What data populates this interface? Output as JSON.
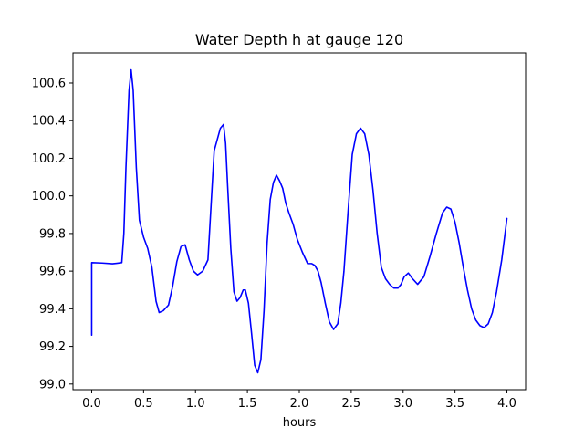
{
  "chart_data": {
    "type": "line",
    "title": "Water Depth h at gauge 120",
    "xlabel": "hours",
    "ylabel": "",
    "xlim": [
      -0.18,
      4.18
    ],
    "ylim": [
      98.97,
      100.76
    ],
    "xticks": [
      0.0,
      0.5,
      1.0,
      1.5,
      2.0,
      2.5,
      3.0,
      3.5,
      4.0
    ],
    "xtick_labels": [
      "0.0",
      "0.5",
      "1.0",
      "1.5",
      "2.0",
      "2.5",
      "3.0",
      "3.5",
      "4.0"
    ],
    "yticks": [
      99.0,
      99.2,
      99.4,
      99.6,
      99.8,
      100.0,
      100.2,
      100.4,
      100.6
    ],
    "ytick_labels": [
      "99.0",
      "99.2",
      "99.4",
      "99.6",
      "99.8",
      "100.0",
      "100.2",
      "100.4",
      "100.6"
    ],
    "grid": false,
    "legend": "none",
    "series": [
      {
        "color": "#0000ff",
        "x": [
          0.0,
          0.0,
          0.1,
          0.2,
          0.29,
          0.31,
          0.33,
          0.36,
          0.38,
          0.4,
          0.43,
          0.46,
          0.5,
          0.54,
          0.58,
          0.62,
          0.65,
          0.69,
          0.74,
          0.78,
          0.82,
          0.86,
          0.9,
          0.94,
          0.98,
          1.02,
          1.07,
          1.12,
          1.15,
          1.18,
          1.21,
          1.24,
          1.27,
          1.29,
          1.31,
          1.34,
          1.37,
          1.4,
          1.43,
          1.46,
          1.48,
          1.51,
          1.54,
          1.57,
          1.6,
          1.63,
          1.66,
          1.69,
          1.72,
          1.75,
          1.78,
          1.81,
          1.84,
          1.87,
          1.9,
          1.94,
          1.98,
          2.03,
          2.08,
          2.12,
          2.15,
          2.18,
          2.21,
          2.25,
          2.29,
          2.33,
          2.37,
          2.4,
          2.43,
          2.47,
          2.51,
          2.55,
          2.59,
          2.63,
          2.67,
          2.71,
          2.75,
          2.79,
          2.83,
          2.87,
          2.91,
          2.95,
          2.98,
          3.01,
          3.05,
          3.09,
          3.14,
          3.2,
          3.26,
          3.32,
          3.38,
          3.42,
          3.46,
          3.5,
          3.54,
          3.58,
          3.62,
          3.66,
          3.7,
          3.74,
          3.78,
          3.82,
          3.86,
          3.9,
          3.95,
          4.0
        ],
        "y": [
          99.26,
          99.645,
          99.643,
          99.639,
          99.645,
          99.8,
          100.15,
          100.56,
          100.67,
          100.56,
          100.15,
          99.87,
          99.78,
          99.72,
          99.62,
          99.44,
          99.38,
          99.39,
          99.42,
          99.52,
          99.65,
          99.73,
          99.74,
          99.66,
          99.6,
          99.58,
          99.6,
          99.66,
          99.95,
          100.24,
          100.3,
          100.36,
          100.38,
          100.28,
          100.05,
          99.72,
          99.49,
          99.44,
          99.46,
          99.5,
          99.5,
          99.43,
          99.27,
          99.1,
          99.06,
          99.13,
          99.39,
          99.75,
          99.98,
          100.07,
          100.11,
          100.08,
          100.04,
          99.96,
          99.91,
          99.85,
          99.77,
          99.7,
          99.64,
          99.64,
          99.63,
          99.6,
          99.54,
          99.43,
          99.33,
          99.29,
          99.32,
          99.43,
          99.6,
          99.92,
          100.22,
          100.33,
          100.36,
          100.33,
          100.22,
          100.03,
          99.8,
          99.62,
          99.56,
          99.53,
          99.51,
          99.51,
          99.53,
          99.57,
          99.59,
          99.56,
          99.53,
          99.57,
          99.68,
          99.8,
          99.91,
          99.94,
          99.93,
          99.86,
          99.75,
          99.62,
          99.5,
          99.4,
          99.34,
          99.31,
          99.3,
          99.32,
          99.38,
          99.49,
          99.66,
          99.88
        ]
      }
    ]
  }
}
